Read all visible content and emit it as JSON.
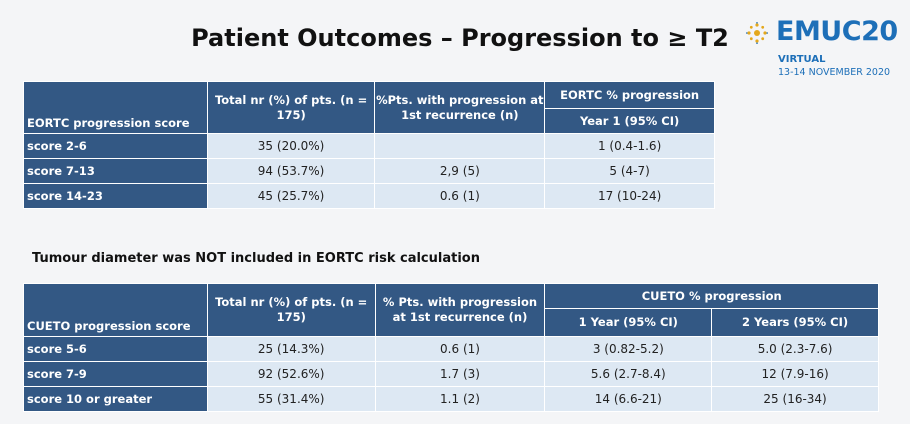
{
  "title": "Patient Outcomes – Progression to ≥ T2",
  "logo": {
    "word": "EMUC",
    "year": "20",
    "line1": "VIRTUAL",
    "line2": "13-14 NOVEMBER 2020",
    "colors": {
      "brand": "#1d6fb8",
      "dot": "#e4a81c"
    }
  },
  "eortc_table": {
    "headers": {
      "score": "EORTC progression score",
      "total": "Total nr (%) of pts. (n = 175)",
      "pct_pts": "%Pts. with progression at 1st recurrence (n)",
      "group": "EORTC % progression",
      "year1": "Year 1 (95% CI)"
    },
    "rows": [
      {
        "score": "score 2-6",
        "total": "35 (20.0%)",
        "pct": "",
        "year1": "1 (0.4-1.6)"
      },
      {
        "score": "score 7-13",
        "total": "94 (53.7%)",
        "pct": "2,9 (5)",
        "year1": "5 (4-7)"
      },
      {
        "score": "score 14-23",
        "total": "45 (25.7%)",
        "pct": "0.6 (1)",
        "year1": "17 (10-24)"
      }
    ]
  },
  "note": "Tumour diameter was NOT included in EORTC risk calculation",
  "cueto_table": {
    "headers": {
      "score": "CUETO progression score",
      "total": "Total nr (%) of pts. (n = 175)",
      "pct_pts": "% Pts. with progression at 1st recurrence (n)",
      "group": "CUETO % progression",
      "year1": "1 Year (95% CI)",
      "year2": "2 Years (95% CI)"
    },
    "rows": [
      {
        "score": "score 5-6",
        "total": "25 (14.3%)",
        "pct": "0.6 (1)",
        "year1": "3 (0.82-5.2)",
        "year2": "5.0 (2.3-7.6)"
      },
      {
        "score": "score 7-9",
        "total": "92 (52.6%)",
        "pct": "1.7 (3)",
        "year1": "5.6 (2.7-8.4)",
        "year2": "12 (7.9-16)"
      },
      {
        "score": "score 10 or greater",
        "total": "55 (31.4%)",
        "pct": "1.1 (2)",
        "year1": "14 (6.6-21)",
        "year2": "25 (16-34)"
      }
    ]
  },
  "colors": {
    "header": "#335884",
    "cell": "#dde8f3"
  }
}
